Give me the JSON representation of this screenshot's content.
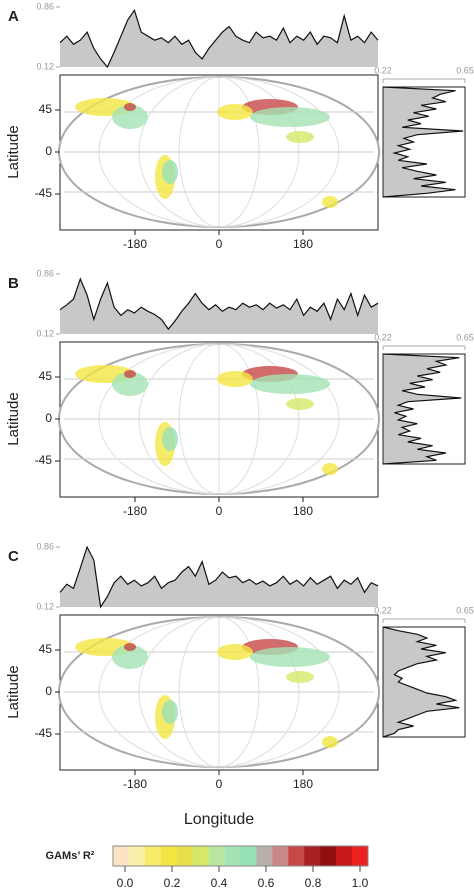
{
  "panels": [
    {
      "label": "A",
      "top_profile": {
        "ylim": [
          0.12,
          0.86
        ],
        "yticks": [
          0.86,
          0.12
        ],
        "values": [
          0.42,
          0.5,
          0.4,
          0.45,
          0.55,
          0.35,
          0.22,
          0.12,
          0.3,
          0.5,
          0.7,
          0.82,
          0.55,
          0.5,
          0.45,
          0.48,
          0.42,
          0.5,
          0.4,
          0.45,
          0.3,
          0.22,
          0.35,
          0.45,
          0.55,
          0.62,
          0.5,
          0.45,
          0.42,
          0.55,
          0.48,
          0.5,
          0.45,
          0.6,
          0.42,
          0.5,
          0.45,
          0.55,
          0.4,
          0.5,
          0.48,
          0.42,
          0.75,
          0.45,
          0.5,
          0.42,
          0.55,
          0.45
        ]
      },
      "side_profile": {
        "xlim": [
          0.22,
          0.65
        ],
        "xticks": [
          0.22,
          0.65
        ],
        "values": [
          0.22,
          0.6,
          0.52,
          0.48,
          0.55,
          0.42,
          0.5,
          0.38,
          0.46,
          0.35,
          0.42,
          0.32,
          0.64,
          0.4,
          0.33,
          0.38,
          0.3,
          0.36,
          0.28,
          0.35,
          0.3,
          0.45,
          0.32,
          0.4,
          0.5,
          0.38,
          0.55,
          0.42,
          0.6,
          0.45,
          0.22
        ]
      }
    },
    {
      "label": "B",
      "top_profile": {
        "ylim": [
          0.12,
          0.86
        ],
        "yticks": [
          0.86,
          0.12
        ],
        "values": [
          0.42,
          0.48,
          0.55,
          0.8,
          0.6,
          0.3,
          0.55,
          0.75,
          0.45,
          0.35,
          0.42,
          0.38,
          0.45,
          0.4,
          0.36,
          0.3,
          0.18,
          0.28,
          0.4,
          0.5,
          0.62,
          0.5,
          0.42,
          0.48,
          0.4,
          0.45,
          0.42,
          0.5,
          0.45,
          0.48,
          0.42,
          0.5,
          0.44,
          0.48,
          0.42,
          0.55,
          0.35,
          0.45,
          0.4,
          0.5,
          0.3,
          0.55,
          0.42,
          0.62,
          0.35,
          0.6,
          0.45,
          0.5
        ]
      },
      "side_profile": {
        "xlim": [
          0.22,
          0.65
        ],
        "xticks": [
          0.22,
          0.65
        ],
        "values": [
          0.22,
          0.62,
          0.5,
          0.55,
          0.45,
          0.52,
          0.4,
          0.48,
          0.36,
          0.44,
          0.32,
          0.4,
          0.63,
          0.35,
          0.3,
          0.38,
          0.28,
          0.34,
          0.3,
          0.4,
          0.32,
          0.36,
          0.3,
          0.42,
          0.35,
          0.48,
          0.4,
          0.55,
          0.45,
          0.5,
          0.22
        ]
      }
    },
    {
      "label": "C",
      "top_profile": {
        "ylim": [
          0.12,
          0.86
        ],
        "yticks": [
          0.86,
          0.12
        ],
        "values": [
          0.3,
          0.4,
          0.35,
          0.6,
          0.86,
          0.7,
          0.12,
          0.25,
          0.42,
          0.5,
          0.4,
          0.45,
          0.38,
          0.42,
          0.5,
          0.35,
          0.42,
          0.45,
          0.55,
          0.62,
          0.5,
          0.68,
          0.4,
          0.45,
          0.55,
          0.48,
          0.5,
          0.42,
          0.46,
          0.4,
          0.44,
          0.38,
          0.42,
          0.5,
          0.4,
          0.45,
          0.38,
          0.48,
          0.4,
          0.45,
          0.5,
          0.35,
          0.45,
          0.4,
          0.48,
          0.3,
          0.42,
          0.38
        ]
      },
      "side_profile": {
        "xlim": [
          0.22,
          0.65
        ],
        "xticks": [
          0.22,
          0.65
        ],
        "values": [
          0.22,
          0.3,
          0.4,
          0.45,
          0.4,
          0.5,
          0.42,
          0.55,
          0.45,
          0.5,
          0.4,
          0.35,
          0.3,
          0.28,
          0.32,
          0.3,
          0.35,
          0.4,
          0.45,
          0.55,
          0.6,
          0.5,
          0.62,
          0.45,
          0.4,
          0.35,
          0.3,
          0.38,
          0.3,
          0.28,
          0.22
        ]
      }
    }
  ],
  "map_axes": {
    "xticks": [
      -180,
      0,
      180
    ],
    "yticks": [
      45,
      0,
      -45
    ],
    "xlabel": "Longitude",
    "ylabel": "Latitude"
  },
  "colorbar": {
    "title": "GAMs’ R²",
    "ticks": [
      {
        "value": 0,
        "label": "0.0"
      },
      0.2,
      0.4,
      0.6,
      0.8,
      {
        "value": 1,
        "label": "1.0"
      }
    ],
    "colors": [
      "#fbe3c6",
      "#f8f0a8",
      "#f6ec6a",
      "#f4e640",
      "#e8e04a",
      "#d6e86a",
      "#b8e6a0",
      "#a4e4b4",
      "#98e0b8",
      "#b8b0a8",
      "#c88888",
      "#c84848",
      "#a82020",
      "#901010",
      "#c81818",
      "#ec2020"
    ]
  }
}
